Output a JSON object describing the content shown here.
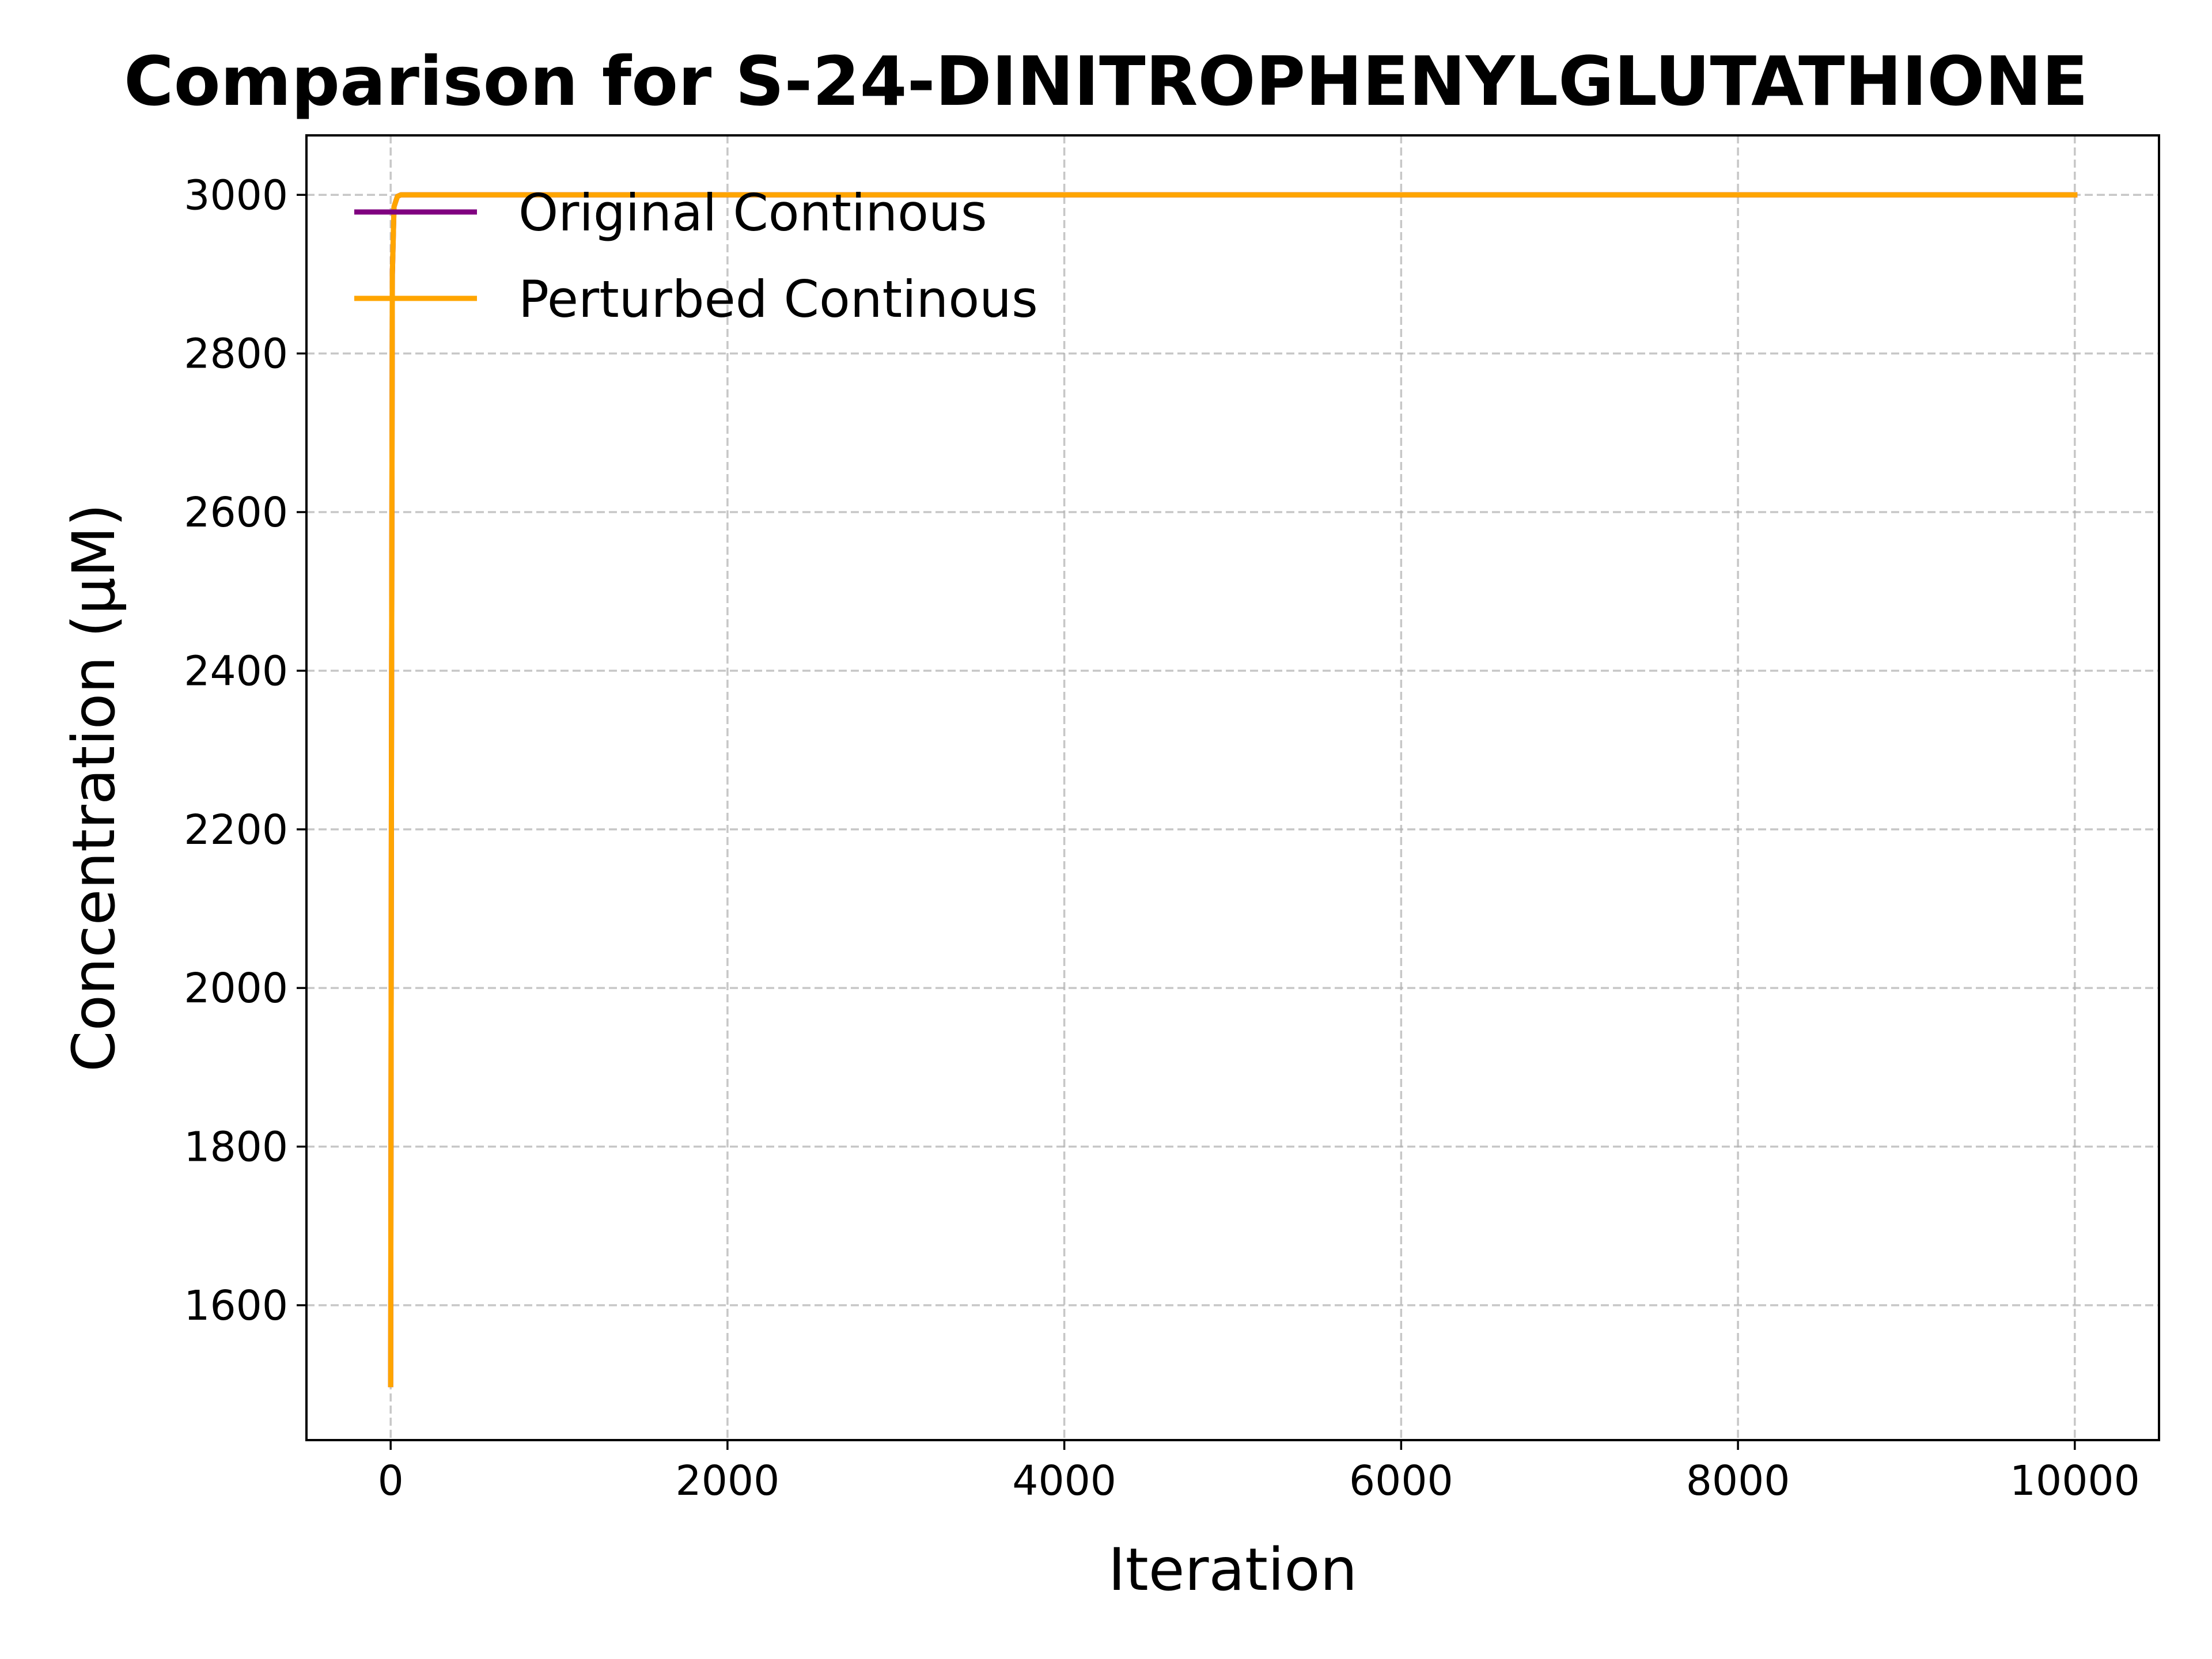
{
  "chart_data": {
    "type": "line",
    "title": "Comparison for S-24-DINITROPHENYLGLUTATHIONE",
    "xlabel": "Iteration",
    "ylabel": "Concentration (μM)",
    "xlim": [
      -500,
      10500
    ],
    "ylim": [
      1430,
      3075
    ],
    "xticks": [
      0,
      2000,
      4000,
      6000,
      8000,
      10000
    ],
    "yticks": [
      1600,
      1800,
      2000,
      2200,
      2400,
      2600,
      2800,
      3000
    ],
    "grid": true,
    "legend_position": "upper-left",
    "series": [
      {
        "name": "Original Continous",
        "color": "#800080",
        "x": [
          0,
          5,
          10,
          20,
          40,
          60,
          100,
          200,
          500,
          1000,
          5000,
          10000
        ],
        "y": [
          1500,
          2300,
          2900,
          2985,
          2998,
          3000,
          3000,
          3000,
          3000,
          3000,
          3000,
          3000
        ]
      },
      {
        "name": "Perturbed Continous",
        "color": "#FFA500",
        "x": [
          0,
          5,
          10,
          20,
          40,
          60,
          100,
          200,
          500,
          1000,
          5000,
          10000
        ],
        "y": [
          1500,
          2300,
          2900,
          2985,
          2998,
          3000,
          3000,
          3000,
          3000,
          3000,
          3000,
          3000
        ]
      }
    ]
  }
}
